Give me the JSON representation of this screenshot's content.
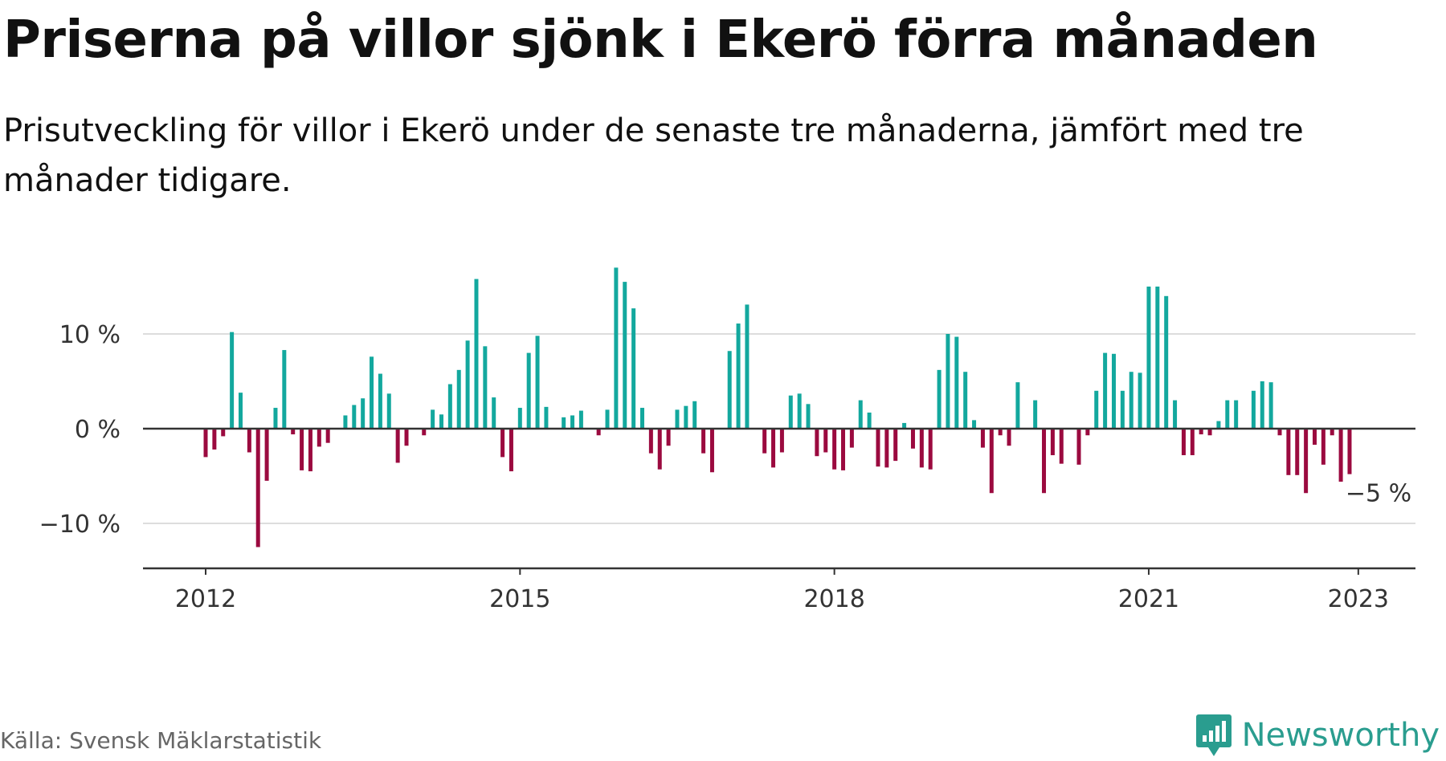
{
  "header": {
    "title": "Priserna på villor sjönk i Ekerö förra månaden",
    "subtitle": "Prisutveckling för villor i Ekerö under de senaste tre månaderna, jämfört med tre månader tidigare."
  },
  "footer": {
    "source": "Källa: Svensk Mäklarstatistik",
    "brand": "Newsworthy",
    "brand_icon": "newsworthy-logo-icon"
  },
  "colors": {
    "positive": "#13a89e",
    "negative": "#9b0a3f",
    "axis": "#333333",
    "grid": "#dddddd",
    "brand": "#2a9d8f"
  },
  "chart_data": {
    "type": "bar",
    "start": "2012-01",
    "ylim": [
      -14,
      17
    ],
    "ytick_values": [
      -10,
      0,
      10
    ],
    "yticks": [
      "−10 %",
      "0 %",
      "10 %"
    ],
    "xticks": [
      {
        "label": "2012",
        "index": 0
      },
      {
        "label": "2015",
        "index": 36
      },
      {
        "label": "2018",
        "index": 72
      },
      {
        "label": "2021",
        "index": 108
      },
      {
        "label": "2023",
        "index": 132
      }
    ],
    "annotation": "−5 %",
    "grid": true,
    "values": [
      -3,
      -2.2,
      -0.8,
      10.2,
      3.8,
      -2.5,
      -12.5,
      -5.5,
      2.2,
      8.3,
      -0.6,
      -4.4,
      -4.5,
      -1.9,
      -1.5,
      null,
      1.4,
      2.5,
      3.2,
      7.6,
      5.8,
      3.7,
      -3.6,
      -1.8,
      null,
      -0.7,
      2.0,
      1.5,
      4.7,
      6.2,
      9.3,
      15.8,
      8.7,
      3.3,
      -3.0,
      -4.5,
      2.2,
      8.0,
      9.8,
      2.3,
      null,
      1.2,
      1.4,
      1.9,
      null,
      -0.7,
      2.0,
      17.0,
      15.5,
      12.7,
      2.2,
      -2.6,
      -4.3,
      -1.8,
      2.0,
      2.4,
      2.9,
      -2.6,
      -4.6,
      null,
      8.2,
      11.1,
      13.1,
      null,
      -2.6,
      -4.1,
      -2.5,
      3.5,
      3.7,
      2.6,
      -2.9,
      -2.5,
      -4.3,
      -4.4,
      -2.0,
      3.0,
      1.7,
      -4.0,
      -4.1,
      -3.4,
      0.6,
      -2.1,
      -4.1,
      -4.3,
      6.2,
      10.0,
      9.7,
      6.0,
      0.9,
      -2.0,
      -6.8,
      -0.7,
      -1.8,
      4.9,
      null,
      3.0,
      -6.8,
      -2.8,
      -3.7,
      null,
      -3.8,
      -0.7,
      4.0,
      8.0,
      7.9,
      4.0,
      6.0,
      5.9,
      15.0,
      15.0,
      14.0,
      3.0,
      -2.8,
      -2.8,
      -0.6,
      -0.7,
      0.8,
      3.0,
      3.0,
      null,
      4.0,
      5.0,
      4.9,
      -0.7,
      -4.9,
      -4.9,
      -6.8,
      -1.7,
      -3.8,
      -0.7,
      -5.6,
      -4.8
    ]
  }
}
